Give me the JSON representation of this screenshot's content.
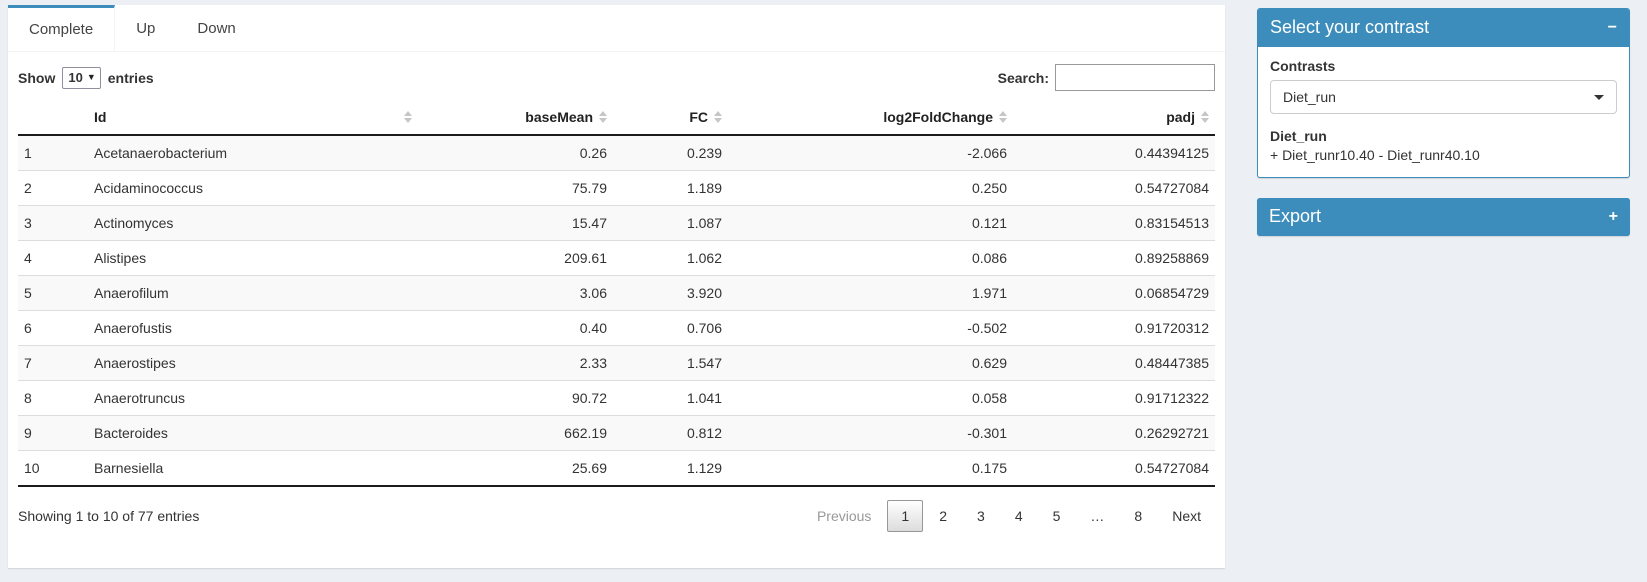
{
  "colors": {
    "accent": "#3c8dbc",
    "page_bg": "#ecf0f5"
  },
  "tabs": [
    {
      "label": "Complete",
      "active": true
    },
    {
      "label": "Up",
      "active": false
    },
    {
      "label": "Down",
      "active": false
    }
  ],
  "controls": {
    "show_label": "Show",
    "page_size": "10",
    "entries_label": "entries",
    "search_label": "Search:",
    "search_value": ""
  },
  "table": {
    "columns": [
      {
        "label": "",
        "sortable": false,
        "align": "left"
      },
      {
        "label": "Id",
        "sortable": true,
        "align": "left"
      },
      {
        "label": "baseMean",
        "sortable": true,
        "align": "right"
      },
      {
        "label": "FC",
        "sortable": true,
        "align": "right"
      },
      {
        "label": "log2FoldChange",
        "sortable": true,
        "align": "right"
      },
      {
        "label": "padj",
        "sortable": true,
        "align": "right"
      }
    ],
    "rows": [
      {
        "num": "1",
        "id": "Acetanaerobacterium",
        "baseMean": "0.26",
        "fc": "0.239",
        "log2fc": "-2.066",
        "padj": "0.44394125"
      },
      {
        "num": "2",
        "id": "Acidaminococcus",
        "baseMean": "75.79",
        "fc": "1.189",
        "log2fc": "0.250",
        "padj": "0.54727084"
      },
      {
        "num": "3",
        "id": "Actinomyces",
        "baseMean": "15.47",
        "fc": "1.087",
        "log2fc": "0.121",
        "padj": "0.83154513"
      },
      {
        "num": "4",
        "id": "Alistipes",
        "baseMean": "209.61",
        "fc": "1.062",
        "log2fc": "0.086",
        "padj": "0.89258869"
      },
      {
        "num": "5",
        "id": "Anaerofilum",
        "baseMean": "3.06",
        "fc": "3.920",
        "log2fc": "1.971",
        "padj": "0.06854729"
      },
      {
        "num": "6",
        "id": "Anaerofustis",
        "baseMean": "0.40",
        "fc": "0.706",
        "log2fc": "-0.502",
        "padj": "0.91720312"
      },
      {
        "num": "7",
        "id": "Anaerostipes",
        "baseMean": "2.33",
        "fc": "1.547",
        "log2fc": "0.629",
        "padj": "0.48447385"
      },
      {
        "num": "8",
        "id": "Anaerotruncus",
        "baseMean": "90.72",
        "fc": "1.041",
        "log2fc": "0.058",
        "padj": "0.91712322"
      },
      {
        "num": "9",
        "id": "Bacteroides",
        "baseMean": "662.19",
        "fc": "0.812",
        "log2fc": "-0.301",
        "padj": "0.26292721"
      },
      {
        "num": "10",
        "id": "Barnesiella",
        "baseMean": "25.69",
        "fc": "1.129",
        "log2fc": "0.175",
        "padj": "0.54727084"
      }
    ]
  },
  "footer": {
    "info": "Showing 1 to 10 of 77 entries",
    "pagination": [
      {
        "label": "Previous",
        "state": "disabled"
      },
      {
        "label": "1",
        "state": "current"
      },
      {
        "label": "2",
        "state": "normal"
      },
      {
        "label": "3",
        "state": "normal"
      },
      {
        "label": "4",
        "state": "normal"
      },
      {
        "label": "5",
        "state": "normal"
      },
      {
        "label": "…",
        "state": "ellipsis"
      },
      {
        "label": "8",
        "state": "normal"
      },
      {
        "label": "Next",
        "state": "normal"
      }
    ]
  },
  "sidebar": {
    "contrast_box": {
      "title": "Select your contrast",
      "collapse_icon": "−",
      "contrasts_label": "Contrasts",
      "selected_contrast": "Diet_run",
      "contrast_name": "Diet_run",
      "contrast_formula": "+ Diet_runr10.40 - Diet_runr40.10"
    },
    "export_box": {
      "title": "Export",
      "expand_icon": "+"
    }
  }
}
